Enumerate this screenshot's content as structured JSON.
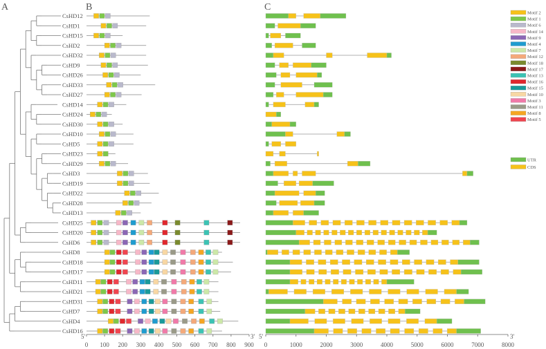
{
  "panels": {
    "a": "A",
    "b": "B",
    "c": "C"
  },
  "genes": [
    "CsHD12",
    "CsHD1",
    "CsHD15",
    "CsHD2",
    "CsHD32",
    "CsHD9",
    "CsHD26",
    "CsHD33",
    "CsHD27",
    "CsHD14",
    "CsHD24",
    "CsHD30",
    "CsHD10",
    "CsHD5",
    "CsHD23",
    "CsHD29",
    "CsHD3",
    "CsHD19",
    "CsHD22",
    "CsHD28",
    "CsHD13",
    "CsHD25",
    "CsHD20",
    "CsHD6",
    "CsHD8",
    "CsHD18",
    "CsHD17",
    "CsHD11",
    "CsHD21",
    "CsHD31",
    "CsHD7",
    "CsHD4",
    "CsHD16"
  ],
  "motif_axis": {
    "ticks": [
      0,
      100,
      200,
      300,
      400,
      500,
      600,
      700,
      800,
      900
    ],
    "end5": "5'",
    "end3": "3'"
  },
  "gene_axis": {
    "ticks": [
      0,
      1000,
      2000,
      3000,
      4000,
      5000,
      6000,
      7000,
      8000
    ],
    "end5": "5'",
    "end3": "3'"
  },
  "legend": {
    "motifs": [
      {
        "name": "Motif 2",
        "color": "#f6c21a"
      },
      {
        "name": "Motif 1",
        "color": "#7ec84a"
      },
      {
        "name": "Motif 6",
        "color": "#b9b9cc"
      },
      {
        "name": "Motif 14",
        "color": "#f7b8c8"
      },
      {
        "name": "Motif 9",
        "color": "#8b67b5"
      },
      {
        "name": "Motif 4",
        "color": "#1f9ccf"
      },
      {
        "name": "Motif 7",
        "color": "#cce8a8"
      },
      {
        "name": "Motif 12",
        "color": "#f4a97a"
      },
      {
        "name": "Motif 18",
        "color": "#7a8a2e"
      },
      {
        "name": "Motif 17",
        "color": "#8b1a1a"
      },
      {
        "name": "Motif 13",
        "color": "#3cc3b4"
      },
      {
        "name": "Motif 16",
        "color": "#e0282e"
      },
      {
        "name": "Motif 15",
        "color": "#1a9a9a"
      },
      {
        "name": "Motif 10",
        "color": "#f8d7a3"
      },
      {
        "name": "Motif 3",
        "color": "#f07aa8"
      },
      {
        "name": "Motif 11",
        "color": "#9a9a88"
      },
      {
        "name": "Motif 8",
        "color": "#f5a623"
      },
      {
        "name": "Motif 5",
        "color": "#f0454f"
      }
    ],
    "structures": [
      {
        "name": "UTR",
        "color": "#6fc04e"
      },
      {
        "name": "CDS",
        "color": "#f6c21a"
      }
    ]
  }
}
